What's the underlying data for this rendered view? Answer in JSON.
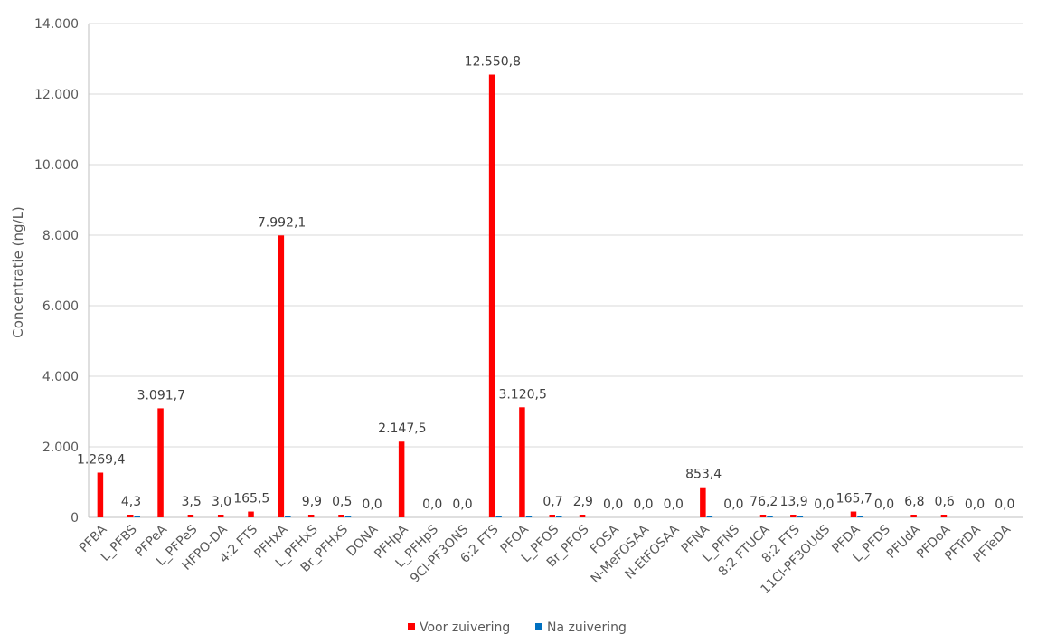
{
  "chart_data": {
    "type": "bar",
    "ylabel": "Concentratie (ng/L)",
    "xlabel": "",
    "ylim": [
      0,
      14000
    ],
    "y_ticks": [
      "0",
      "2.000",
      "4.000",
      "6.000",
      "8.000",
      "10.000",
      "12.000",
      "14.000"
    ],
    "grid": true,
    "legend_position": "bottom",
    "categories": [
      "PFBA",
      "L_PFBS",
      "PFPeA",
      "L_PFPeS",
      "HFPO-DA",
      "4:2 FTS",
      "PFHxA",
      "L_PFHxS",
      "Br_PFHxS",
      "DONA",
      "PFHpA",
      "L_PFHpS",
      "9Cl-PF3ONS",
      "6:2 FTS",
      "PFOA",
      "L_PFOS",
      "Br_PFOS",
      "FOSA",
      "N-MeFOSAA",
      "N-EtFOSAA",
      "PFNA",
      "L_PFNS",
      "8:2 FTUCA",
      "8:2 FTS",
      "11Cl-PF3OUdS",
      "PFDA",
      "L_PFDS",
      "PFUdA",
      "PFDoA",
      "PFTrDA",
      "PFTeDA"
    ],
    "series": [
      {
        "name": "Voor zuivering",
        "color": "#ff0000",
        "values": [
          1269.4,
          4.3,
          3091.7,
          3.5,
          3.0,
          165.5,
          7992.1,
          9.9,
          0.5,
          0.0,
          2147.5,
          0.0,
          0.0,
          12550.8,
          3120.5,
          0.7,
          2.9,
          0.0,
          0.0,
          0.0,
          853.4,
          0.0,
          76.2,
          13.9,
          0.0,
          165.7,
          0.0,
          6.8,
          0.6,
          0.0,
          0.0
        ],
        "labels": [
          "1.269,4",
          "4,3",
          "3.091,7",
          "3,5",
          "3,0",
          "165,5",
          "7.992,1",
          "9,9",
          "0,5",
          "0,0",
          "2.147,5",
          "0,0",
          "0,0",
          "12.550,8",
          "3.120,5",
          "0,7",
          "2,9",
          "0,0",
          "0,0",
          "0,0",
          "853,4",
          "0,0",
          "76,2",
          "13,9",
          "0,0",
          "165,7",
          "0,0",
          "6,8",
          "0,6",
          "0,0",
          "0,0"
        ]
      },
      {
        "name": "Na zuivering",
        "color": "#0070c0",
        "values": [
          0,
          2,
          0,
          0,
          0,
          0,
          3,
          0,
          3,
          0,
          0,
          0,
          0,
          3,
          3,
          3,
          0,
          0,
          0,
          0,
          3,
          0,
          3,
          3,
          0,
          3,
          0,
          0,
          0,
          0,
          0
        ]
      }
    ]
  }
}
